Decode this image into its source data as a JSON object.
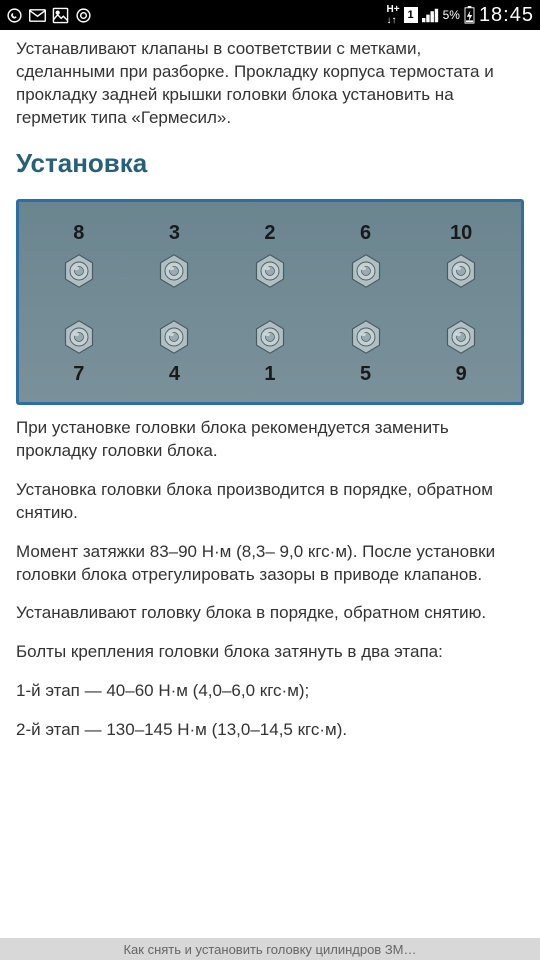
{
  "status_bar": {
    "battery_pct": "5%",
    "clock": "18:45",
    "sim": "1"
  },
  "intro_paragraph": "Устанавливают клапаны в соответствии с метками, сделанными при разборке. Прокладку корпуса термостата и прокладку задней крышки головки блока установить на герметик типа «Гермесил».",
  "heading": "Установка",
  "diagram": {
    "type": "bolt-torque-sequence",
    "background_color": "#7a919a",
    "border_color": "#2b6fa3",
    "bolt_fill": "#a8b8bd",
    "bolt_stroke": "#5a6e76",
    "label_color": "#1a1a1a",
    "top_row": [
      "8",
      "3",
      "2",
      "6",
      "10"
    ],
    "bottom_row": [
      "7",
      "4",
      "1",
      "5",
      "9"
    ]
  },
  "paragraphs": [
    "При установке головки блока рекомендуется заменить прокладку головки блока.",
    "Установка головки блока производится в порядке, обратном снятию.",
    "Момент затяжки 83–90 Н·м (8,3– 9,0 кгс·м). После установки головки блока отрегулировать зазоры в приводе клапанов.",
    "Устанавливают головку блока в порядке, обратном снятию.",
    "Болты крепления головки блока затянуть в два этапа:",
    "1-й этап — 40–60 Н·м (4,0–6,0 кгс·м);",
    "2-й этап — 130–145 Н·м (13,0–14,5 кгс·м)."
  ],
  "bottom_bar": "Как снять и установить головку цилиндров ЗМ…"
}
